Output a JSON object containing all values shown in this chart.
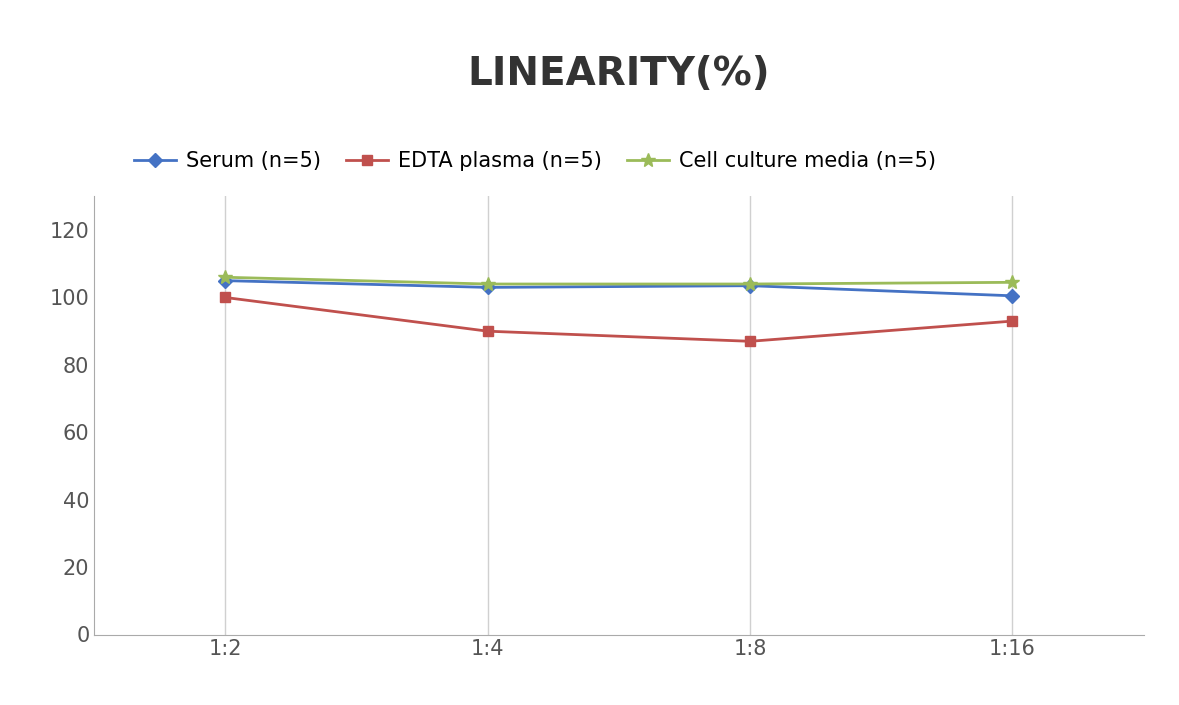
{
  "title": "LINEARITY(%)",
  "x_labels": [
    "1:2",
    "1:4",
    "1:8",
    "1:16"
  ],
  "x_positions": [
    0,
    1,
    2,
    3
  ],
  "series": [
    {
      "name": "Serum (n=5)",
      "values": [
        105,
        103,
        103.5,
        100.5
      ],
      "color": "#4472C4",
      "marker": "D",
      "linewidth": 2,
      "markersize": 7
    },
    {
      "name": "EDTA plasma (n=5)",
      "values": [
        100,
        90,
        87,
        93
      ],
      "color": "#C0504D",
      "marker": "s",
      "linewidth": 2,
      "markersize": 7
    },
    {
      "name": "Cell culture media (n=5)",
      "values": [
        106,
        104,
        104,
        104.5
      ],
      "color": "#9BBB59",
      "marker": "*",
      "linewidth": 2,
      "markersize": 10
    }
  ],
  "ylim": [
    0,
    130
  ],
  "yticks": [
    0,
    20,
    40,
    60,
    80,
    100,
    120
  ],
  "title_fontsize": 28,
  "tick_fontsize": 15,
  "legend_fontsize": 15,
  "background_color": "#ffffff",
  "grid_color": "#d0d0d0"
}
